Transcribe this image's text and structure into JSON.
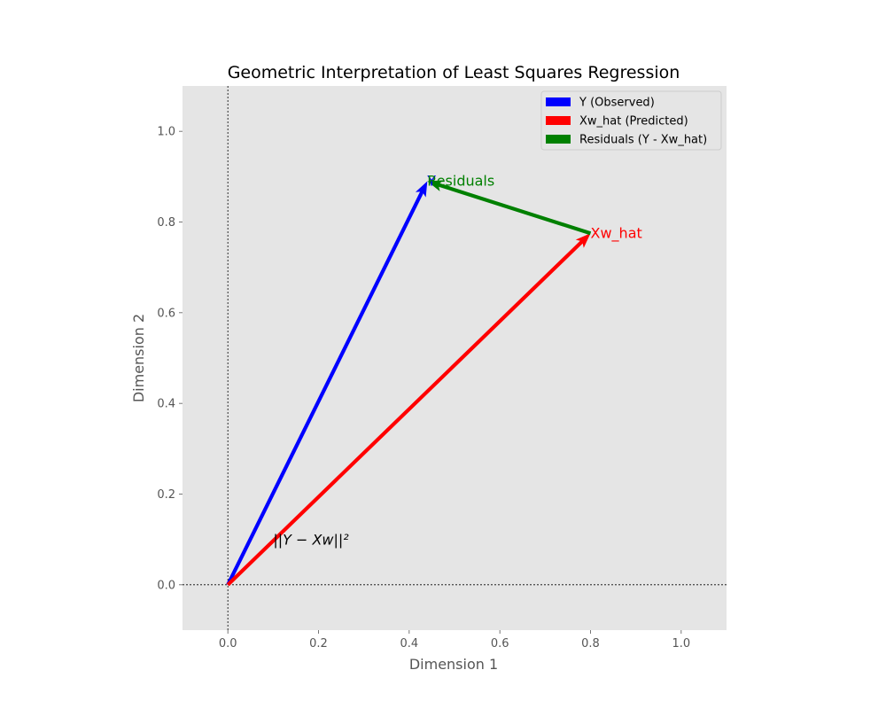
{
  "chart_data": {
    "type": "line",
    "title": "Geometric Interpretation of Least Squares Regression",
    "xlabel": "Dimension 1",
    "ylabel": "Dimension 2",
    "xlim": [
      -0.1,
      1.1
    ],
    "ylim": [
      -0.1,
      1.1
    ],
    "grid": false,
    "legend_position": "top-right",
    "x_ticks": [
      0.0,
      0.2,
      0.4,
      0.6,
      0.8,
      1.0
    ],
    "x_tick_labels": [
      "0.0",
      "0.2",
      "0.4",
      "0.6",
      "0.8",
      "1.0"
    ],
    "y_ticks": [
      0.0,
      0.2,
      0.4,
      0.6,
      0.8,
      1.0
    ],
    "y_tick_labels": [
      "0.0",
      "0.2",
      "0.4",
      "0.6",
      "0.8",
      "1.0"
    ],
    "series": [
      {
        "name": "Y (Observed)",
        "color": "#0000ff",
        "from": [
          0,
          0
        ],
        "to": [
          0.44,
          0.89
        ]
      },
      {
        "name": "Xw_hat (Predicted)",
        "color": "#ff0000",
        "from": [
          0,
          0
        ],
        "to": [
          0.8,
          0.775
        ]
      },
      {
        "name": "Residuals (Y - Xw_hat)",
        "color": "#008000",
        "from": [
          0.8,
          0.775
        ],
        "to": [
          0.44,
          0.89
        ]
      }
    ],
    "annotations": [
      {
        "text": "Y",
        "x": 0.44,
        "y": 0.89,
        "color": "#0000ff"
      },
      {
        "text": "Residuals",
        "x": 0.44,
        "y": 0.89,
        "color": "#008000"
      },
      {
        "text": "Xw_hat",
        "x": 0.8,
        "y": 0.775,
        "color": "#ff0000"
      },
      {
        "text": "||Y − Xw||²",
        "x": 0.1,
        "y": 0.1,
        "color": "#000000"
      }
    ],
    "reference_lines": [
      {
        "orientation": "horizontal",
        "value": 0,
        "style": "dotted",
        "color": "#000000"
      },
      {
        "orientation": "vertical",
        "value": 0,
        "style": "dotted",
        "color": "#000000"
      }
    ],
    "background_color": "#e5e5e5"
  }
}
